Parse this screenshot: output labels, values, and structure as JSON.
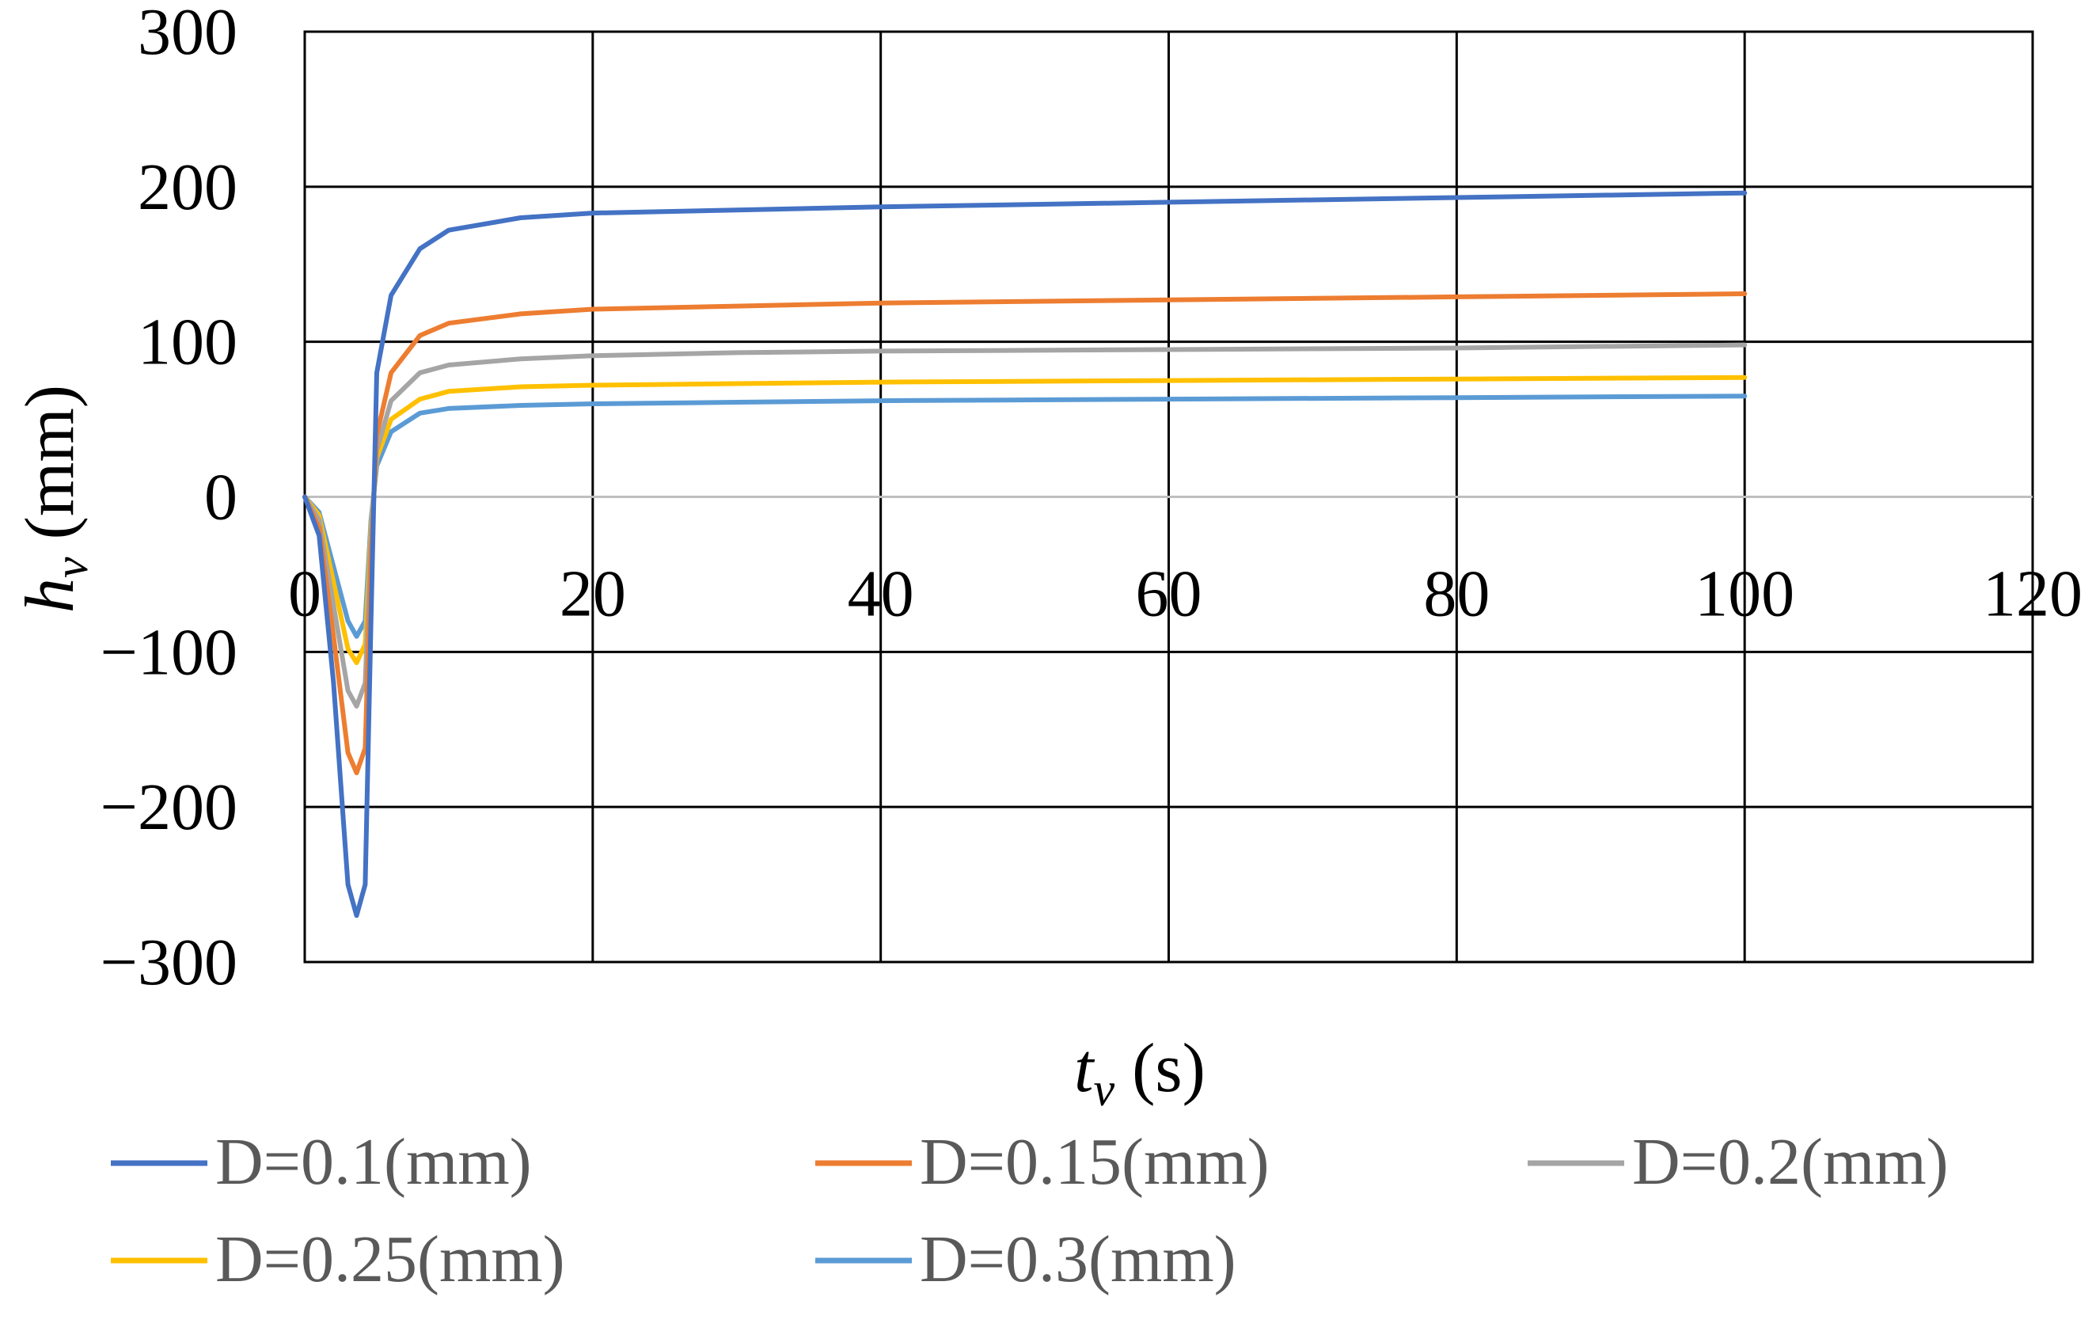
{
  "chart_data": {
    "type": "line",
    "title": "",
    "xlabel": {
      "var": "t",
      "sub": "v",
      "unit": " (s)"
    },
    "ylabel": {
      "var": "h",
      "sub": "v",
      "unit": " (mm)"
    },
    "xlim": [
      0,
      120
    ],
    "ylim": [
      -300,
      300
    ],
    "xticks": [
      0,
      20,
      40,
      60,
      80,
      100,
      120
    ],
    "yticks": [
      -300,
      -200,
      -100,
      0,
      100,
      200,
      300
    ],
    "xtick_labels": [
      "0",
      "20",
      "40",
      "60",
      "80",
      "100",
      "120"
    ],
    "ytick_labels": [
      "−300",
      "−200",
      "−100",
      "0",
      "100",
      "200",
      "300"
    ],
    "grid": true,
    "legend_position": "bottom",
    "series": [
      {
        "name": "D=0.1(mm)",
        "color": "#4472C4",
        "points": [
          [
            0,
            0
          ],
          [
            1,
            -25
          ],
          [
            2,
            -120
          ],
          [
            3,
            -250
          ],
          [
            3.6,
            -270
          ],
          [
            4.2,
            -250
          ],
          [
            4.6,
            -80
          ],
          [
            5,
            80
          ],
          [
            6,
            130
          ],
          [
            8,
            160
          ],
          [
            10,
            172
          ],
          [
            15,
            180
          ],
          [
            20,
            183
          ],
          [
            30,
            185
          ],
          [
            40,
            187
          ],
          [
            60,
            190
          ],
          [
            80,
            193
          ],
          [
            100,
            196
          ]
        ]
      },
      {
        "name": "D=0.15(mm)",
        "color": "#ED7D31",
        "points": [
          [
            0,
            0
          ],
          [
            1,
            -20
          ],
          [
            2,
            -90
          ],
          [
            3,
            -165
          ],
          [
            3.6,
            -178
          ],
          [
            4.2,
            -162
          ],
          [
            4.6,
            -40
          ],
          [
            5,
            40
          ],
          [
            6,
            80
          ],
          [
            8,
            104
          ],
          [
            10,
            112
          ],
          [
            15,
            118
          ],
          [
            20,
            121
          ],
          [
            30,
            123
          ],
          [
            40,
            125
          ],
          [
            60,
            127
          ],
          [
            80,
            129
          ],
          [
            100,
            131
          ]
        ]
      },
      {
        "name": "D=0.2(mm)",
        "color": "#A5A5A5",
        "points": [
          [
            0,
            0
          ],
          [
            1,
            -15
          ],
          [
            2,
            -70
          ],
          [
            3,
            -125
          ],
          [
            3.6,
            -135
          ],
          [
            4.2,
            -120
          ],
          [
            4.6,
            -25
          ],
          [
            5,
            30
          ],
          [
            6,
            62
          ],
          [
            8,
            80
          ],
          [
            10,
            85
          ],
          [
            15,
            89
          ],
          [
            20,
            91
          ],
          [
            30,
            93
          ],
          [
            40,
            94
          ],
          [
            60,
            95
          ],
          [
            80,
            96
          ],
          [
            100,
            98
          ]
        ]
      },
      {
        "name": "D=0.25(mm)",
        "color": "#FFC000",
        "points": [
          [
            0,
            0
          ],
          [
            1,
            -12
          ],
          [
            2,
            -55
          ],
          [
            3,
            -98
          ],
          [
            3.6,
            -107
          ],
          [
            4.2,
            -95
          ],
          [
            4.6,
            -20
          ],
          [
            5,
            25
          ],
          [
            6,
            50
          ],
          [
            8,
            63
          ],
          [
            10,
            68
          ],
          [
            15,
            71
          ],
          [
            20,
            72
          ],
          [
            30,
            73
          ],
          [
            40,
            74
          ],
          [
            60,
            75
          ],
          [
            80,
            76
          ],
          [
            100,
            77
          ]
        ]
      },
      {
        "name": "D=0.3(mm)",
        "color": "#5B9BD5",
        "points": [
          [
            0,
            0
          ],
          [
            1,
            -10
          ],
          [
            2,
            -45
          ],
          [
            3,
            -80
          ],
          [
            3.6,
            -90
          ],
          [
            4.2,
            -80
          ],
          [
            4.6,
            -15
          ],
          [
            5,
            20
          ],
          [
            6,
            42
          ],
          [
            8,
            54
          ],
          [
            10,
            57
          ],
          [
            15,
            59
          ],
          [
            20,
            60
          ],
          [
            30,
            61
          ],
          [
            40,
            62
          ],
          [
            60,
            63
          ],
          [
            80,
            64
          ],
          [
            100,
            65
          ]
        ]
      }
    ]
  }
}
